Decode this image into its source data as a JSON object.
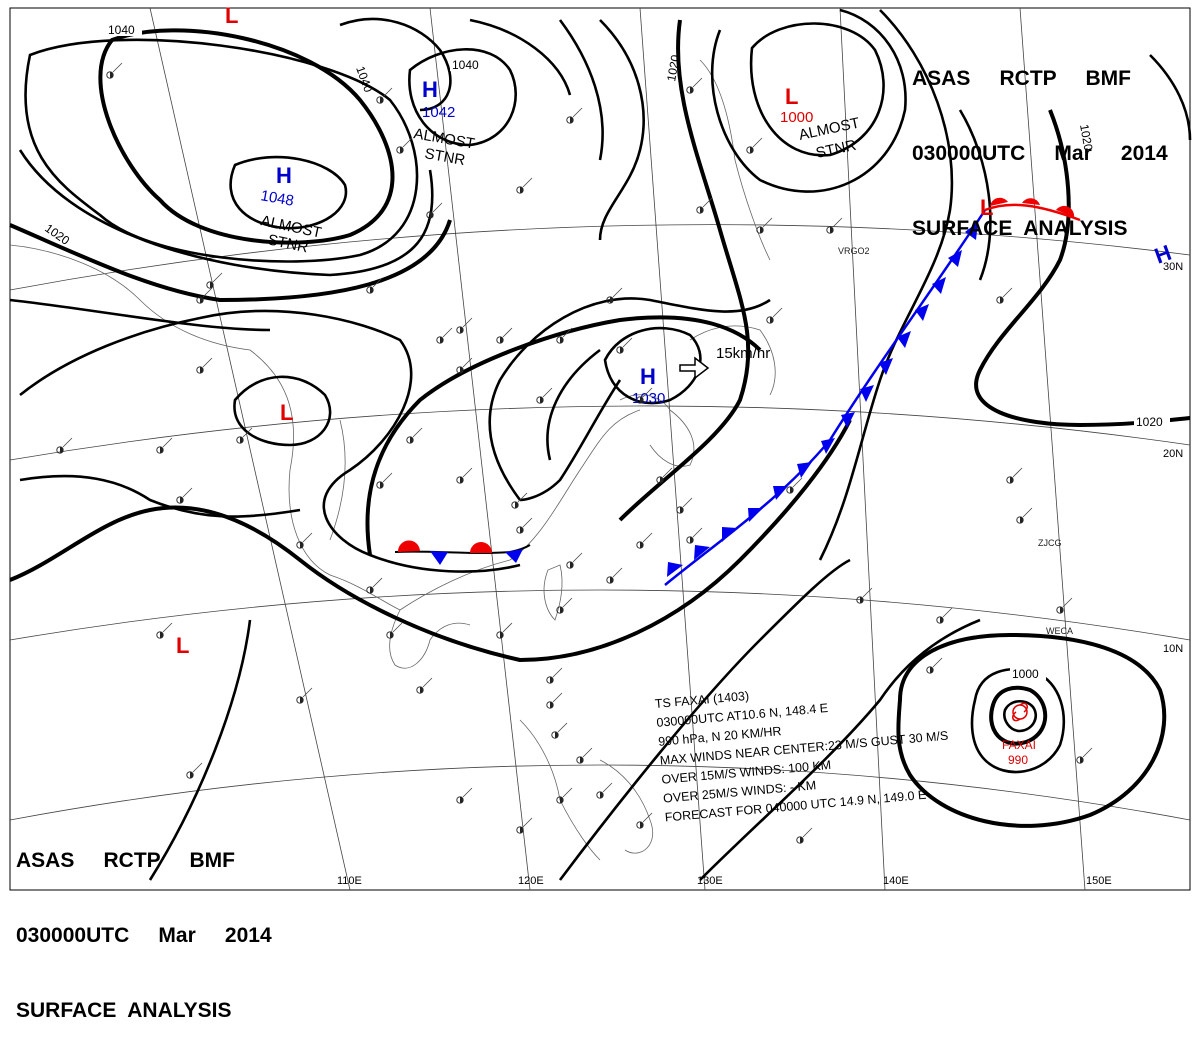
{
  "header": {
    "line1": "ASAS     RCTP     BMF",
    "line2": "030000UTC     Mar     2014",
    "line3": "SURFACE  ANALYSIS"
  },
  "colors": {
    "high": "#0000cc",
    "low": "#e00000",
    "cold_front": "#0000ee",
    "warm_front": "#ee0000",
    "isobar": "#000000"
  },
  "isobar_labels": [
    "1040",
    "1040",
    "1040",
    "1020",
    "1020",
    "1020",
    "1020",
    "1000"
  ],
  "longitude_labels": [
    "110E",
    "120E",
    "130E",
    "140E",
    "150E"
  ],
  "latitude_labels": [
    "30N",
    "20N",
    "10N"
  ],
  "systems": [
    {
      "type": "H",
      "value": "1048",
      "note": "ALMOST STNR"
    },
    {
      "type": "H",
      "value": "1042",
      "note": "ALMOST STNR"
    },
    {
      "type": "H",
      "value": "1030",
      "note": ""
    },
    {
      "type": "H",
      "value": "",
      "note": ""
    },
    {
      "type": "L",
      "value": "1000",
      "note": "ALMOST STNR"
    },
    {
      "type": "L",
      "value": "",
      "note": ""
    },
    {
      "type": "L",
      "value": "",
      "note": ""
    },
    {
      "type": "L",
      "value": "",
      "note": ""
    },
    {
      "type": "L",
      "value": "",
      "note": ""
    }
  ],
  "notes": {
    "almost_stnr_1": "ALMOST",
    "almost_stnr_2": "STNR",
    "motion": "15km/hr"
  },
  "storm": {
    "name": "FAXAI",
    "pressure": "990",
    "bulletin": [
      "TS  FAXAI  (1403)",
      "030000UTC  AT10.6 N, 148.4 E",
      "990 hPa, N  20 KM/HR",
      "MAX WINDS NEAR CENTER:23 M/S GUST 30 M/S",
      "OVER 15M/S WINDS: 100 KM",
      "OVER 25M/S WINDS: - KM",
      "FORECAST FOR 040000 UTC 14.9 N, 149.0 E"
    ]
  },
  "station_codes": [
    "VRGO2",
    "ZJCG",
    "WECA"
  ]
}
